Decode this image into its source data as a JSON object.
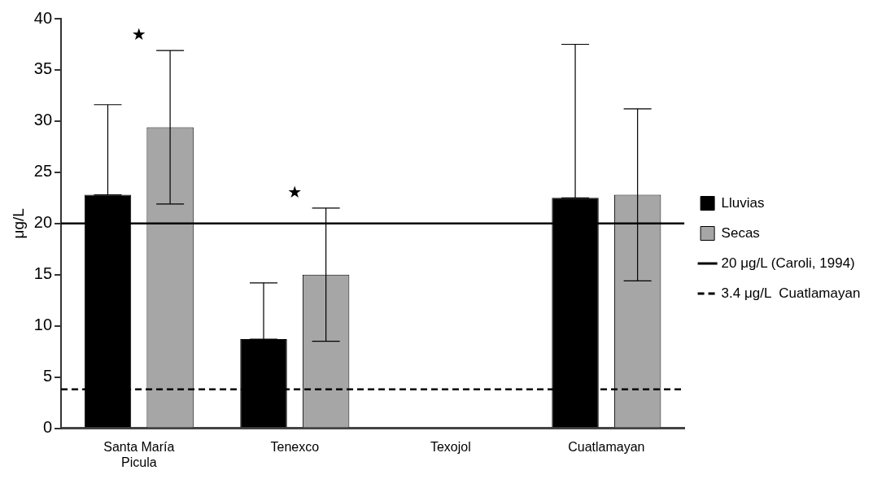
{
  "chart_data": {
    "type": "bar",
    "ylabel": "μg/L",
    "categories": [
      "Santa María Picula",
      "Tenexco",
      "Texojol",
      "Cuatlamayan"
    ],
    "series": [
      {
        "name": "Lluvias",
        "color": "#000000",
        "values": [
          22.8,
          8.7,
          null,
          22.5
        ],
        "errors": [
          [
            22.8,
            31.6
          ],
          [
            8.7,
            14.2
          ],
          null,
          [
            22.5,
            37.5
          ]
        ]
      },
      {
        "name": "Secas",
        "color": "#a6a6a6",
        "values": [
          29.4,
          15.0,
          null,
          22.8
        ],
        "errors": [
          7.5,
          6.5,
          null,
          8.4
        ]
      }
    ],
    "ylim": [
      0,
      40
    ],
    "yticks": [
      0,
      5,
      10,
      15,
      20,
      25,
      30,
      35,
      40
    ],
    "grid": false,
    "legend": "right",
    "ref_lines": [
      {
        "axis": "y",
        "value": 20,
        "label": "20 μg/L (Caroli, 1994)",
        "color": "#000000",
        "line_style": "solid"
      },
      {
        "axis": "y",
        "value": 3.8,
        "label": "3.4 μg/L  Cuatlamayan",
        "color": "#000000",
        "line_style": "dashed"
      }
    ],
    "annotations": [
      "★",
      "★"
    ]
  }
}
